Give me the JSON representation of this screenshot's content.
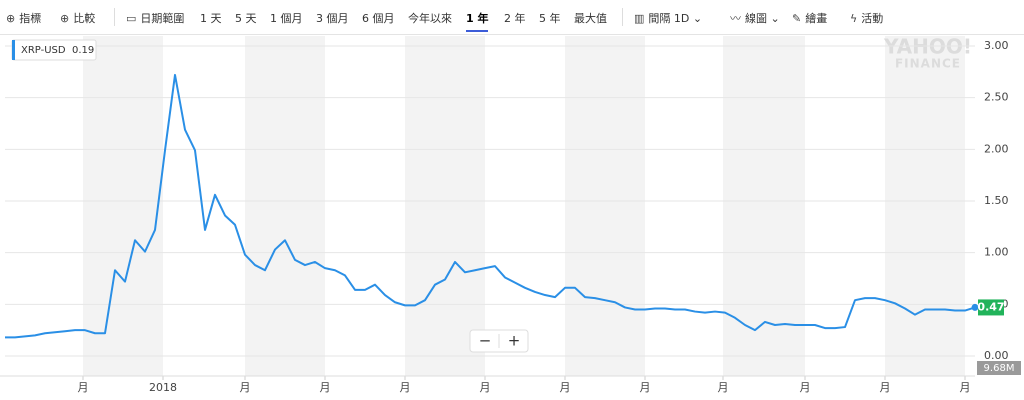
{
  "toolbar": {
    "indicators": "指標",
    "compare": "比較",
    "date_range": "日期範圍",
    "ranges": [
      "1 天",
      "5 天",
      "1 個月",
      "3 個月",
      "6 個月",
      "今年以來",
      "1 年",
      "2 年",
      "5 年",
      "最大值"
    ],
    "active_range_index": 6,
    "interval_label": "間隔",
    "interval": "1D",
    "chart_type": "線圖",
    "draw": "繪畫",
    "events": "活動"
  },
  "chart_data": {
    "type": "line",
    "legend": {
      "name": "XRP-USD",
      "value": "0.19"
    },
    "watermark": [
      "YAHOO!",
      "FINANCE"
    ],
    "zoom": [
      "−",
      "+"
    ],
    "last_price_label": "0.47",
    "volume_label": "9.68M",
    "x": [
      0,
      1,
      2,
      3,
      4,
      5,
      6,
      7,
      8,
      9,
      10,
      11,
      12,
      13,
      14,
      15,
      16,
      17,
      18,
      19,
      20,
      21,
      22,
      23,
      24,
      25,
      26,
      27,
      28,
      29,
      30,
      31,
      32,
      33,
      34,
      35,
      36,
      37,
      38,
      39,
      40,
      41,
      42,
      43,
      44,
      45,
      46,
      47,
      48,
      49,
      50,
      51,
      52,
      53,
      54,
      55,
      56,
      57,
      58,
      59,
      60,
      61,
      62,
      63,
      64,
      65,
      66,
      67,
      68,
      69,
      70,
      71,
      72,
      73,
      74,
      75,
      76,
      77,
      78,
      79,
      80,
      81,
      82,
      83,
      84,
      85,
      86,
      87,
      88,
      89,
      90,
      91,
      92,
      93,
      94,
      95,
      96,
      97
    ],
    "series": [
      {
        "name": "XRP-USD",
        "color": "#2a8fe6",
        "values": [
          0.18,
          0.18,
          0.19,
          0.2,
          0.22,
          0.23,
          0.24,
          0.25,
          0.25,
          0.22,
          0.22,
          0.83,
          0.72,
          1.12,
          1.01,
          1.22,
          1.99,
          2.72,
          2.19,
          1.99,
          1.22,
          1.56,
          1.36,
          1.27,
          0.98,
          0.88,
          0.83,
          1.03,
          1.12,
          0.93,
          0.88,
          0.91,
          0.85,
          0.83,
          0.78,
          0.64,
          0.64,
          0.69,
          0.59,
          0.52,
          0.49,
          0.49,
          0.54,
          0.69,
          0.74,
          0.91,
          0.81,
          0.83,
          0.85,
          0.87,
          0.76,
          0.71,
          0.66,
          0.62,
          0.59,
          0.57,
          0.66,
          0.66,
          0.57,
          0.56,
          0.54,
          0.52,
          0.47,
          0.45,
          0.45,
          0.46,
          0.46,
          0.45,
          0.45,
          0.43,
          0.42,
          0.43,
          0.42,
          0.37,
          0.3,
          0.25,
          0.33,
          0.3,
          0.31,
          0.3,
          0.3,
          0.3,
          0.27,
          0.27,
          0.28,
          0.54,
          0.56,
          0.56,
          0.54,
          0.51,
          0.46,
          0.4,
          0.45,
          0.45,
          0.45,
          0.44,
          0.44,
          0.47
        ]
      }
    ],
    "xlim": [
      0,
      97
    ],
    "xticks": [
      {
        "value": 7.8,
        "label": "月"
      },
      {
        "value": 15.8,
        "label": "2018"
      },
      {
        "value": 24,
        "label": "月"
      },
      {
        "value": 32,
        "label": "月"
      },
      {
        "value": 40,
        "label": "月"
      },
      {
        "value": 48,
        "label": "月"
      },
      {
        "value": 56,
        "label": "月"
      },
      {
        "value": 64,
        "label": "月"
      },
      {
        "value": 71.8,
        "label": "月"
      },
      {
        "value": 80,
        "label": "月"
      },
      {
        "value": 88,
        "label": "月"
      },
      {
        "value": 96,
        "label": "月"
      }
    ],
    "ylim": [
      0,
      3
    ],
    "yticks": [
      {
        "value": 0,
        "label": "0.00"
      },
      {
        "value": 0.5,
        "label": "0.50"
      },
      {
        "value": 1,
        "label": "1.00"
      },
      {
        "value": 1.5,
        "label": "1.50"
      },
      {
        "value": 2,
        "label": "2.00"
      },
      {
        "value": 2.5,
        "label": "2.50"
      },
      {
        "value": 3,
        "label": "3.00"
      }
    ],
    "grid": true,
    "y_axis_side": "right"
  }
}
